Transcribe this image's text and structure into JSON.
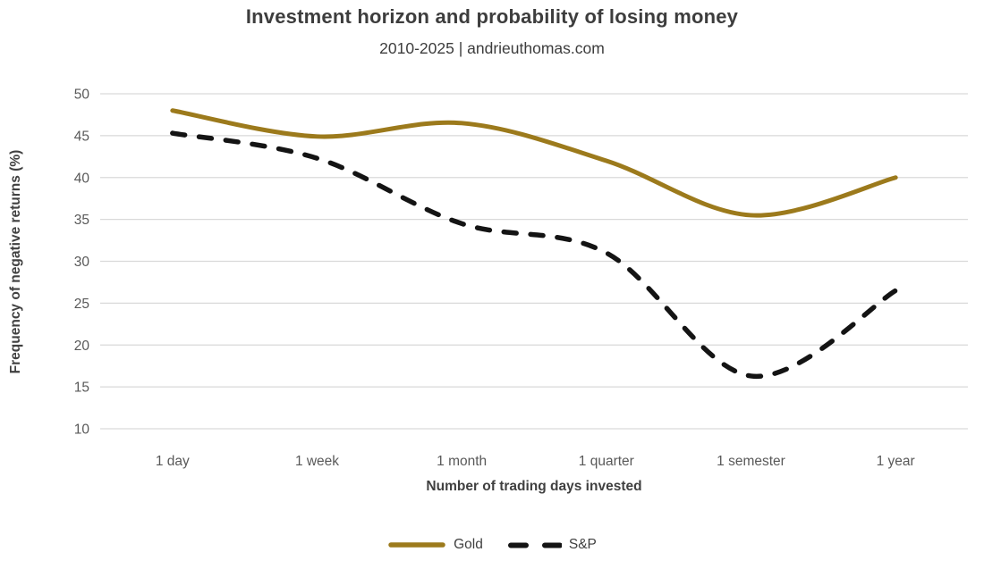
{
  "header": {
    "title": "Investment horizon and probability of losing money",
    "subtitle": "2010-2025 | andrieuthomas.com"
  },
  "chart_data": {
    "type": "line",
    "title": "Investment horizon and probability of losing money",
    "subtitle": "2010-2025 | andrieuthomas.com",
    "categories": [
      "1 day",
      "1 week",
      "1 month",
      "1 quarter",
      "1 semester",
      "1 year"
    ],
    "series": [
      {
        "name": "Gold",
        "color": "#9C7A1C",
        "style": "solid",
        "values": [
          48,
          44.9,
          46.5,
          42,
          35.5,
          40
        ]
      },
      {
        "name": "S&P",
        "color": "#141414",
        "style": "dashed",
        "values": [
          45.3,
          42.3,
          34.5,
          31,
          16.3,
          26.5
        ]
      }
    ],
    "xlabel": "Number of trading days invested",
    "ylabel": "Frequency of negative returns (%)",
    "ylim": [
      10,
      50
    ],
    "yticks": [
      50,
      45,
      40,
      35,
      30,
      25,
      20,
      15,
      10
    ],
    "grid": "horizontal",
    "gridline_color": "#D9D9D9",
    "legend_position": "bottom"
  }
}
